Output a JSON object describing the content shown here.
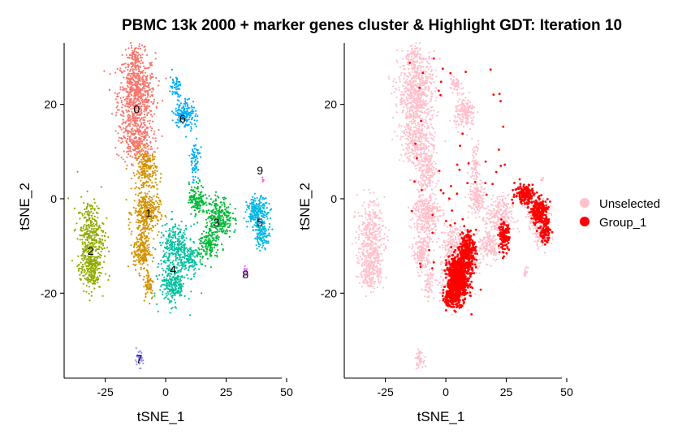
{
  "chart_data": {
    "type": "scatter",
    "title": "PBMC 13k 2000 + marker genes cluster & Highlight GDT: Iteration 10",
    "panels": [
      {
        "name": "clusters",
        "xlabel": "tSNE_1",
        "ylabel": "tSNE_2",
        "xlim": [
          -42,
          48
        ],
        "ylim": [
          -38,
          33
        ],
        "xticks": [
          -25,
          0,
          25,
          50
        ],
        "yticks": [
          -20,
          0,
          20
        ],
        "clusters": [
          {
            "label": "0",
            "color": "#F8766D",
            "center": [
              -12,
              19
            ]
          },
          {
            "label": "1",
            "color": "#D39200",
            "center": [
              -7,
              -3
            ]
          },
          {
            "label": "2",
            "color": "#93AA00",
            "center": [
              -31,
              -11
            ]
          },
          {
            "label": "3",
            "color": "#00BA38",
            "center": [
              21,
              -5
            ]
          },
          {
            "label": "4",
            "color": "#00C19F",
            "center": [
              3,
              -15
            ]
          },
          {
            "label": "5",
            "color": "#00B9E3",
            "center": [
              39,
              -5
            ]
          },
          {
            "label": "6",
            "color": "#00ADFA",
            "center": [
              7,
              17
            ]
          },
          {
            "label": "7",
            "color": "#9590FF",
            "center": [
              -11,
              -34
            ]
          },
          {
            "label": "8",
            "color": "#DB72FB",
            "center": [
              33,
              -16
            ]
          },
          {
            "label": "9",
            "color": "#FF61C3",
            "center": [
              39,
              6
            ]
          }
        ]
      },
      {
        "name": "highlight",
        "xlabel": "tSNE_1",
        "ylabel": "tSNE_2",
        "xlim": [
          -42,
          48
        ],
        "ylim": [
          -38,
          33
        ],
        "xticks": [
          -25,
          0,
          25,
          50
        ],
        "yticks": [
          -20,
          0,
          20
        ],
        "groups": [
          {
            "name": "Unselected",
            "color": "#FFC0CB"
          },
          {
            "name": "Group_1",
            "color": "#FF0000"
          }
        ]
      }
    ],
    "legend": {
      "position": "right",
      "entries": [
        "Unselected",
        "Group_1"
      ]
    },
    "grid": false
  }
}
